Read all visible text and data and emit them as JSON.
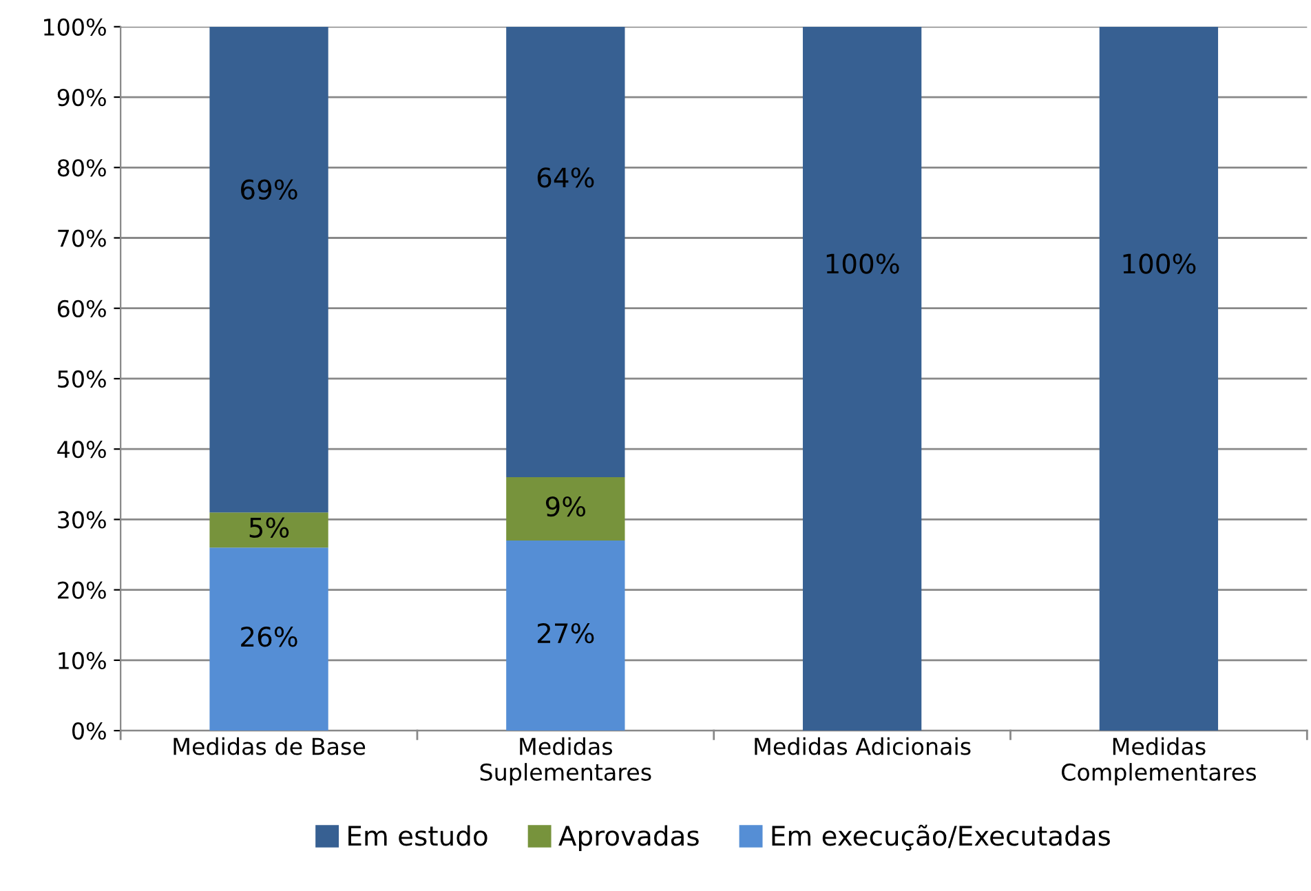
{
  "chart_data": {
    "type": "bar",
    "stacked": true,
    "categories": [
      "Medidas de Base",
      "Medidas\nSuplementares",
      "Medidas Adicionais",
      "Medidas\nComplementares"
    ],
    "series": [
      {
        "name": "Em execução/Executadas",
        "color": "#558ed5",
        "values": [
          26,
          27,
          null,
          null
        ],
        "value_labels": [
          "26%",
          "27%",
          null,
          null
        ]
      },
      {
        "name": "Aprovadas",
        "color": "#77933c",
        "values": [
          5,
          9,
          null,
          null
        ],
        "value_labels": [
          "5%",
          "9%",
          null,
          null
        ]
      },
      {
        "name": "Em estudo",
        "color": "#376092",
        "values": [
          69,
          64,
          100,
          100
        ],
        "value_labels": [
          "69%",
          "64%",
          "100%",
          "100%"
        ]
      }
    ],
    "ylim": [
      0,
      100
    ],
    "yticks": [
      {
        "value": 0,
        "label": "0%"
      },
      {
        "value": 10,
        "label": "10%"
      },
      {
        "value": 20,
        "label": "20%"
      },
      {
        "value": 30,
        "label": "30%"
      },
      {
        "value": 40,
        "label": "40%"
      },
      {
        "value": 50,
        "label": "50%"
      },
      {
        "value": 60,
        "label": "60%"
      },
      {
        "value": 70,
        "label": "70%"
      },
      {
        "value": 80,
        "label": "80%"
      },
      {
        "value": 90,
        "label": "90%"
      },
      {
        "value": 100,
        "label": "100%"
      }
    ],
    "grid": "y",
    "legend": "bottom"
  }
}
